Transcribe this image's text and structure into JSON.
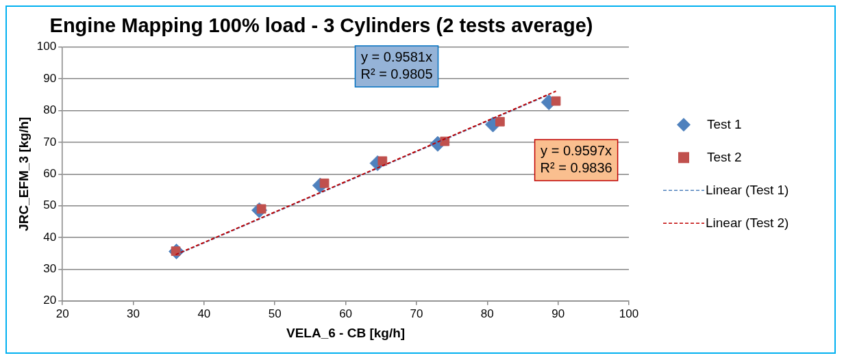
{
  "chart_data": {
    "type": "scatter",
    "title": "Engine Mapping 100% load - 3 Cylinders (2 tests average)",
    "xlabel": "VELA_6 - CB [kg/h]",
    "ylabel": "JRC_EFM_3 [kg/h]",
    "xlim": [
      20,
      100
    ],
    "xticks": [
      20,
      30,
      40,
      50,
      60,
      70,
      80,
      90,
      100
    ],
    "ylim": [
      20,
      100
    ],
    "yticks": [
      20,
      30,
      40,
      50,
      60,
      70,
      80,
      90,
      100
    ],
    "grid": "y",
    "legend": "right",
    "annotations": [
      "y = 0.9581x\nR² = 0.9805",
      "y = 0.9597x\nR² = 0.9836"
    ],
    "series": [
      {
        "name": "Test 1",
        "type": "scatter",
        "marker": "diamond",
        "color": "#4f81bd",
        "x": [
          36.1,
          47.8,
          56.4,
          64.5,
          73.0,
          80.8,
          88.7
        ],
        "values": [
          35.6,
          48.6,
          56.4,
          63.4,
          69.5,
          75.6,
          82.6
        ]
      },
      {
        "name": "Test 2",
        "type": "scatter",
        "marker": "square",
        "color": "#c0504d",
        "x": [
          36.0,
          48.1,
          57.0,
          65.2,
          74.0,
          81.8,
          89.7
        ],
        "values": [
          35.7,
          49.0,
          57.1,
          64.1,
          70.3,
          76.5,
          83.0
        ]
      },
      {
        "name": "Linear (Test 1)",
        "type": "line",
        "marker": "none",
        "line_style": "dashed",
        "color": "#4f81bd",
        "x": [
          36.1,
          88.7
        ],
        "values": [
          34.6,
          85.0
        ]
      },
      {
        "name": "Linear (Test 2)",
        "type": "line",
        "marker": "none",
        "line_style": "dashed",
        "color": "#c00000",
        "x": [
          36.0,
          89.7
        ],
        "values": [
          34.6,
          86.1
        ]
      }
    ]
  }
}
